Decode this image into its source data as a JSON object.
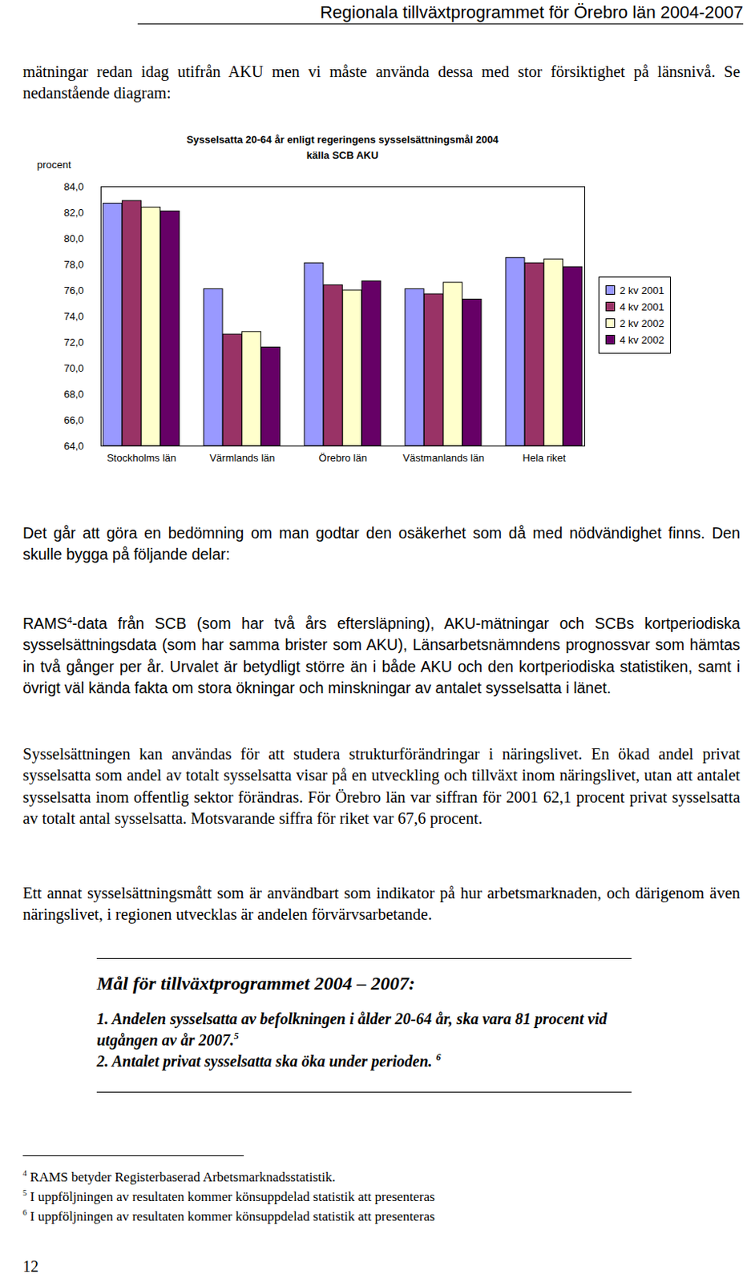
{
  "header": "Regionala tillväxtprogrammet för Örebro län 2004-2007",
  "paragraphs": [
    [
      {
        "text": "mätningar redan idag utifrån AKU men vi måste använda dessa med stor försiktighet på länsnivå. Se nedanstående diagram:"
      }
    ],
    [
      {
        "text": "Det går att göra en bedömning om man godtar den osäkerhet som då med nödvändighet finns. Den skulle bygga på följande delar:"
      }
    ],
    [
      {
        "text": "RAMS"
      },
      {
        "sup": "4"
      },
      {
        "text": "-data från SCB (som har två års eftersläpning), AKU-mätningar och SCBs kortperiodiska sysselsättningsdata (som har samma brister som AKU), Länsarbetsnämndens prognossvar som hämtas in två gånger per år. Urvalet är betydligt större än i både AKU och den kortperiodiska statistiken, samt i övrigt väl kända fakta om stora ökningar och minskningar av antalet sysselsatta i länet."
      }
    ],
    [
      {
        "text": "Sysselsättningen kan användas för att studera strukturförändringar i näringslivet. En ökad andel privat sysselsatta som andel av totalt sysselsatta visar på en utveckling och tillväxt inom näringslivet, utan att antalet sysselsatta inom offentlig sektor förändras. För Örebro län var siffran för 2001 62,1 procent privat sysselsatta av totalt antal sysselsatta. Motsvarande siffra för riket var 67,6 procent."
      }
    ],
    [
      {
        "text": "Ett annat sysselsättningsmått som är användbart som indikator på hur arbetsmarknaden, och därigenom även näringslivet, i regionen utvecklas är andelen förvärvsarbetande."
      }
    ]
  ],
  "chart_data": {
    "type": "bar",
    "title": "Sysselsatta 20-64 år enligt regeringens sysselsättningsmål 2004",
    "subtitle": "källa SCB AKU",
    "y_label": "procent",
    "categories": [
      "Stockholms län",
      "Värmlands län",
      "Örebro län",
      "Västmanlands län",
      "Hela riket"
    ],
    "series": [
      {
        "name": "2 kv 2001",
        "color": "#9999ff",
        "values": [
          82.7,
          76.1,
          78.1,
          76.1,
          78.5
        ]
      },
      {
        "name": "4 kv 2001",
        "color": "#993366",
        "values": [
          82.9,
          72.6,
          76.4,
          75.7,
          78.1
        ]
      },
      {
        "name": "2 kv 2002",
        "color": "#ffffcc",
        "values": [
          82.4,
          72.8,
          76.0,
          76.6,
          78.4
        ]
      },
      {
        "name": "4 kv 2002",
        "color": "#660066",
        "values": [
          82.1,
          71.6,
          76.7,
          75.3,
          77.8
        ]
      }
    ],
    "ylim": [
      64,
      84
    ],
    "yticks": [
      {
        "value": 64,
        "label": "64,0"
      },
      {
        "value": 66,
        "label": "66,0"
      },
      {
        "value": 68,
        "label": "68,0"
      },
      {
        "value": 70,
        "label": "70,0"
      },
      {
        "value": 72,
        "label": "72,0"
      },
      {
        "value": 74,
        "label": "74,0"
      },
      {
        "value": 76,
        "label": "76,0"
      },
      {
        "value": 78,
        "label": "78,0"
      },
      {
        "value": 80,
        "label": "80,0"
      },
      {
        "value": 82,
        "label": "82,0"
      },
      {
        "value": 84,
        "label": "84,0"
      }
    ],
    "grid": false,
    "legend": "right"
  },
  "goals": {
    "title": "Mål för tillväxtprogrammet 2004 – 2007:",
    "items": [
      [
        {
          "text": "1. Andelen sysselsatta av befolkningen i ålder 20-64 år, ska vara 81 procent vid utgången av år 2007."
        },
        {
          "sup": "5"
        }
      ],
      [
        {
          "text": "2. Antalet privat sysselsatta ska öka under perioden. "
        },
        {
          "sup": "6"
        }
      ]
    ]
  },
  "footnotes": [
    {
      "mark": "4",
      "text": "RAMS betyder Registerbaserad Arbetsmarknadsstatistik."
    },
    {
      "mark": "5",
      "text": "I uppföljningen av resultaten kommer könsuppdelad statistik att presenteras"
    },
    {
      "mark": "6",
      "text": "I uppföljningen av resultaten kommer könsuppdelad statistik att presenteras"
    }
  ],
  "page_number": "12"
}
